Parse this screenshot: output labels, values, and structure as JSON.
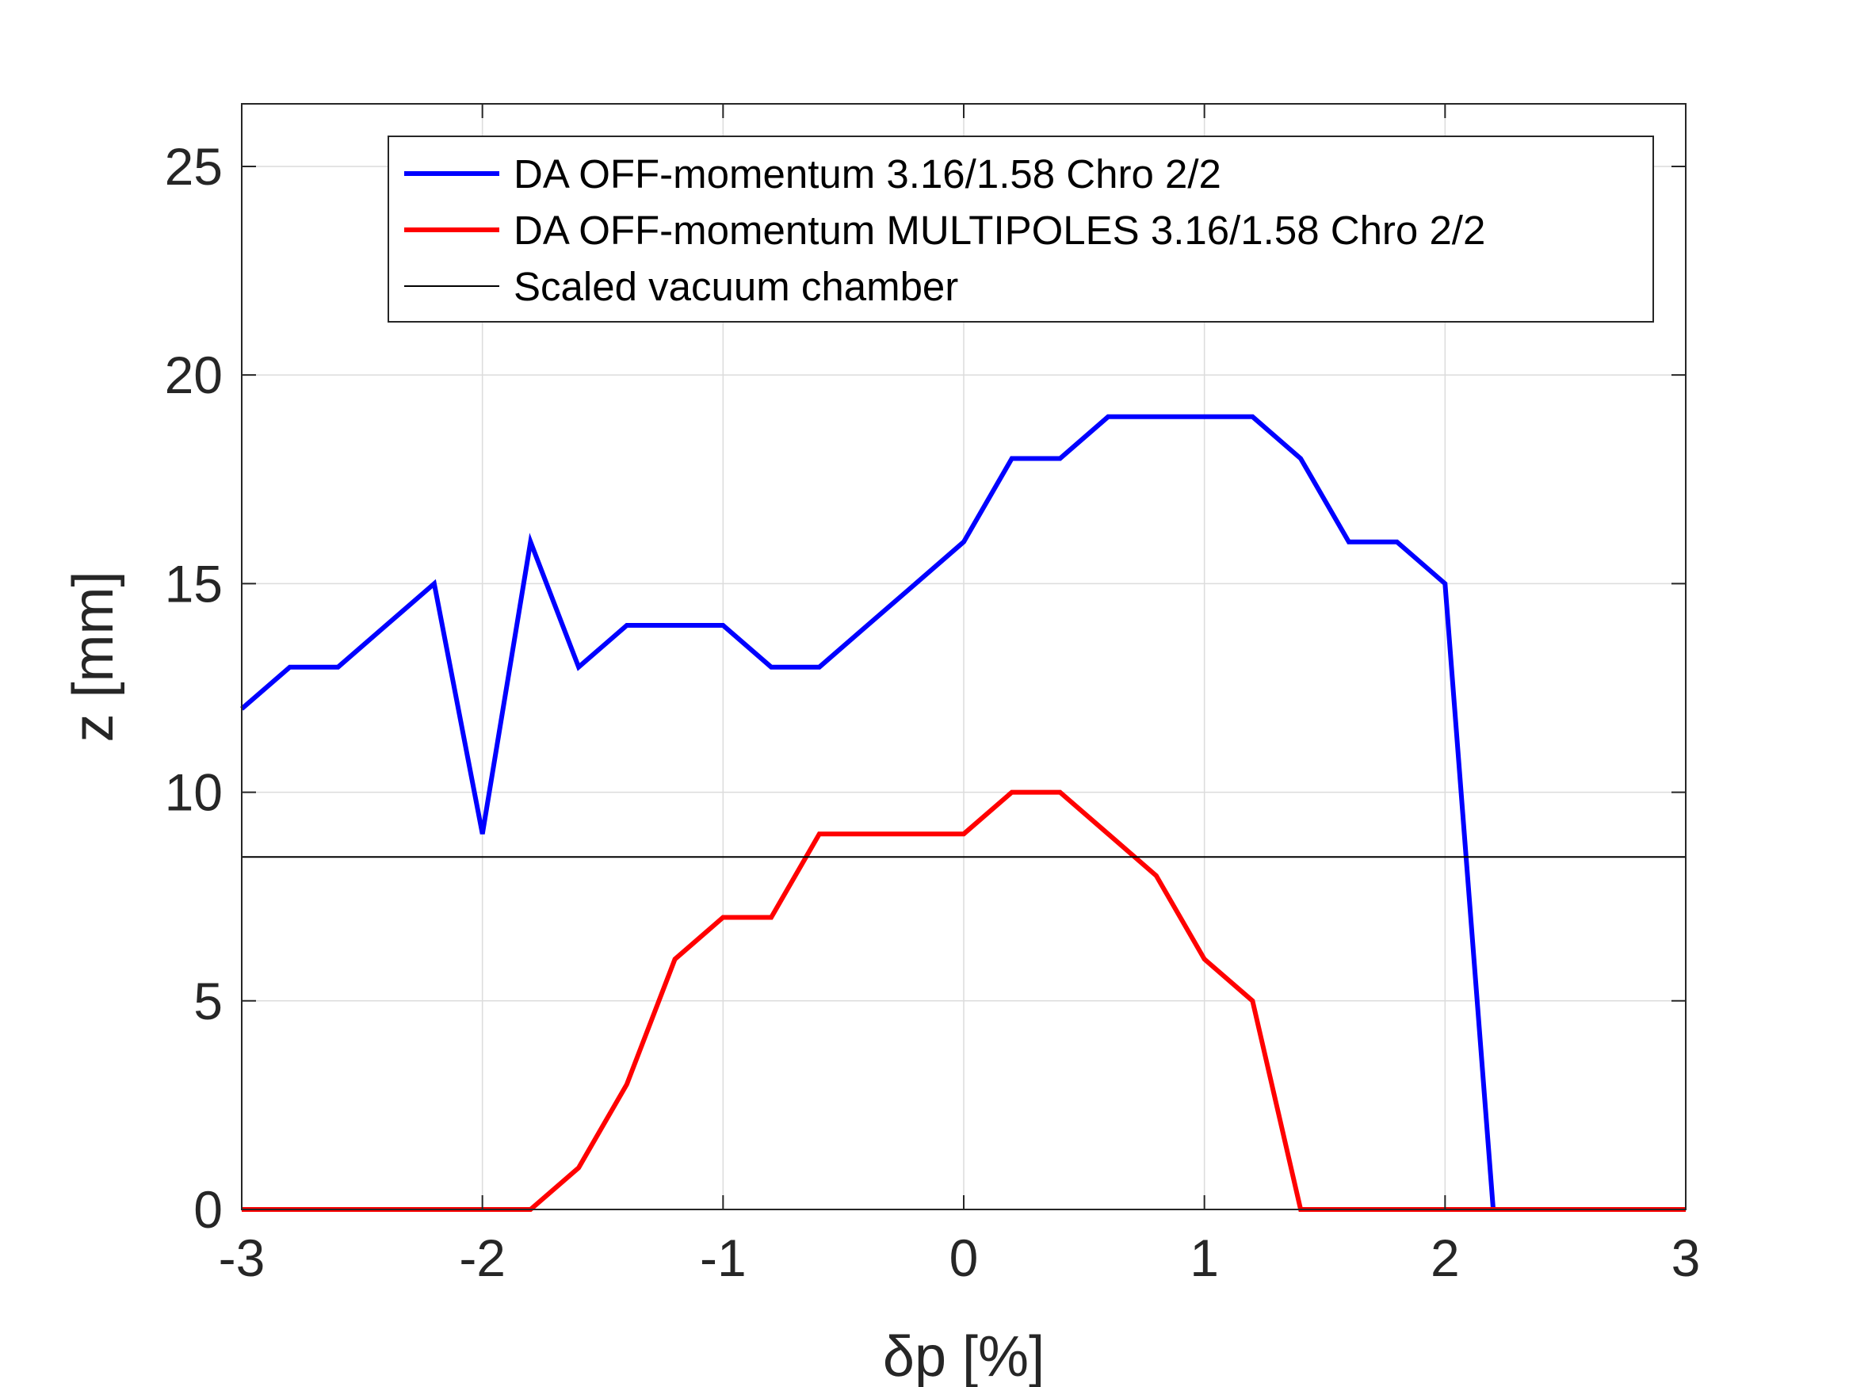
{
  "chart_data": {
    "type": "line",
    "xlabel": "δp [%]",
    "ylabel": "z [mm]",
    "xlim": [
      -3,
      3
    ],
    "ylim": [
      0,
      26.5
    ],
    "xticks": [
      -3,
      -2,
      -1,
      0,
      1,
      2,
      3
    ],
    "yticks": [
      0,
      5,
      10,
      15,
      20,
      25
    ],
    "xtick_labels": [
      "-3",
      "-2",
      "-1",
      "0",
      "1",
      "2",
      "3"
    ],
    "ytick_labels": [
      "0",
      "5",
      "10",
      "15",
      "20",
      "25"
    ],
    "grid": true,
    "legend_position": "top-right",
    "series": [
      {
        "name": "DA OFF-momentum 3.16/1.58 Chro 2/2",
        "color": "#0000ff",
        "x": [
          -3.0,
          -2.8,
          -2.6,
          -2.4,
          -2.2,
          -2.0,
          -1.8,
          -1.6,
          -1.4,
          -1.2,
          -1.0,
          -0.8,
          -0.6,
          -0.4,
          -0.2,
          0.0,
          0.2,
          0.4,
          0.6,
          0.8,
          1.0,
          1.2,
          1.4,
          1.6,
          1.8,
          2.0,
          2.2,
          2.4,
          2.6,
          2.8,
          3.0
        ],
        "y": [
          12,
          13,
          13,
          14,
          15,
          9,
          16,
          13,
          14,
          14,
          14,
          13,
          13,
          14,
          15,
          16,
          18,
          18,
          19,
          19,
          19,
          19,
          18,
          16,
          16,
          15,
          0,
          0,
          0,
          0,
          0
        ]
      },
      {
        "name": "DA OFF-momentum MULTIPOLES 3.16/1.58 Chro 2/2",
        "color": "#ff0000",
        "x": [
          -3.0,
          -2.8,
          -2.6,
          -2.4,
          -2.2,
          -2.0,
          -1.8,
          -1.6,
          -1.4,
          -1.2,
          -1.0,
          -0.8,
          -0.6,
          -0.4,
          -0.2,
          0.0,
          0.2,
          0.4,
          0.6,
          0.8,
          1.0,
          1.2,
          1.4,
          1.6,
          1.8,
          2.0,
          2.2,
          2.4,
          2.6,
          2.8,
          3.0
        ],
        "y": [
          0,
          0,
          0,
          0,
          0,
          0,
          0,
          1,
          3,
          6,
          7,
          7,
          9,
          9,
          9,
          9,
          10,
          10,
          9,
          8,
          6,
          5,
          0,
          0,
          0,
          0,
          0,
          0,
          0,
          0,
          0
        ]
      },
      {
        "name": "Scaled vacuum chamber",
        "color": "#000000",
        "x": [
          -3.0,
          3.0
        ],
        "y": [
          8.45,
          8.45
        ]
      }
    ]
  }
}
